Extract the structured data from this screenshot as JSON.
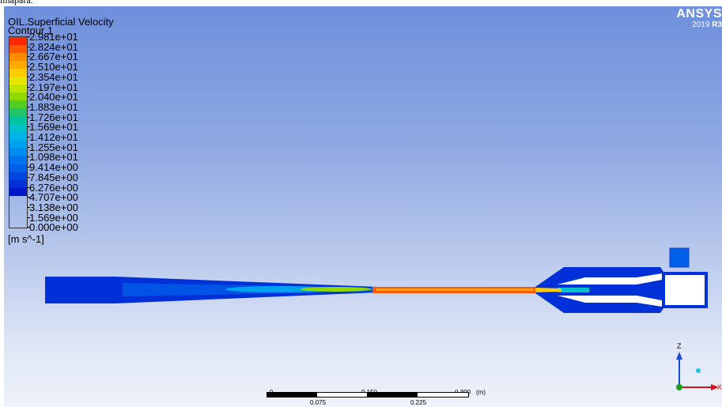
{
  "top_strip_text": "ımapara.",
  "header": {
    "variable": "OIL.Superficial Velocity",
    "contour": "Contour 1"
  },
  "brand": {
    "name": "ANSYS",
    "version": "2019",
    "release": "R3"
  },
  "legend": {
    "labels": [
      "2.981e+01",
      "2.824e+01",
      "2.667e+01",
      "2.510e+01",
      "2.354e+01",
      "2.197e+01",
      "2.040e+01",
      "1.883e+01",
      "1.726e+01",
      "1.569e+01",
      "1.412e+01",
      "1.255e+01",
      "1.098e+01",
      "9.414e+00",
      "7.845e+00",
      "6.276e+00",
      "4.707e+00",
      "3.138e+00",
      "1.569e+00",
      "0.000e+00"
    ],
    "colors": [
      "#ff2a00",
      "#ff5a00",
      "#ff8c00",
      "#ffaa00",
      "#ffcc00",
      "#e6e600",
      "#bfe600",
      "#8fd800",
      "#55cc22",
      "#22c36a",
      "#00c4a0",
      "#00c2c8",
      "#00b4e6",
      "#00a2f0",
      "#008cf0",
      "#0074ee",
      "#005ee8",
      "#0046e0",
      "#0030d8",
      "#0018cc"
    ],
    "units": "[m s^-1]"
  },
  "scale_bar": {
    "labels_top": [
      "0",
      "0.150",
      "0.300"
    ],
    "labels_bottom": [
      "0.075",
      "0.225"
    ],
    "unit": "(m)"
  },
  "axes": {
    "z_label": "Z",
    "x_label": "X"
  }
}
